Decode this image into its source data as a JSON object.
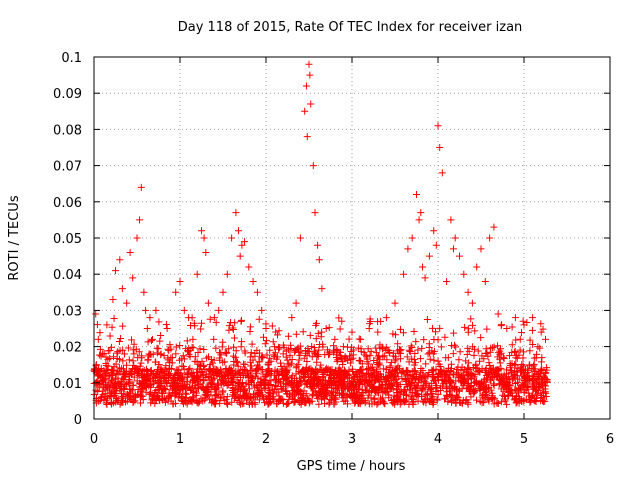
{
  "chart_data": {
    "type": "scatter",
    "title": "Day 118 of 2015, Rate Of TEC Index for receiver izan",
    "xlabel": "GPS time / hours",
    "ylabel": "ROTI / TECUs",
    "xlim": [
      0,
      6
    ],
    "ylim": [
      0,
      0.1
    ],
    "grid": true,
    "marker": "+",
    "series_color": "#ff0000",
    "x_ticks": [
      "0",
      "1",
      "2",
      "3",
      "4",
      "5",
      "6"
    ],
    "y_ticks": [
      "0",
      "0.01",
      "0.02",
      "0.03",
      "0.04",
      "0.05",
      "0.06",
      "0.07",
      "0.08",
      "0.09",
      "0.1"
    ],
    "series": [
      {
        "x": [
          0.02,
          0.05,
          0.1,
          0.15,
          0.22,
          0.25,
          0.3,
          0.33,
          0.38,
          0.42,
          0.45,
          0.5,
          0.53,
          0.55,
          0.58,
          0.6,
          0.62,
          0.65,
          0.68,
          0.72,
          0.78,
          0.85,
          0.95,
          1.0,
          1.05,
          1.1,
          1.15,
          1.2,
          1.25,
          1.28,
          1.3,
          1.33,
          1.4,
          1.45,
          1.5,
          1.55,
          1.6,
          1.65,
          1.68,
          1.7,
          1.72,
          1.75,
          1.8,
          1.85,
          1.9,
          1.95,
          2.0,
          2.1,
          2.2,
          2.3,
          2.35,
          2.4,
          2.45,
          2.47,
          2.48,
          2.5,
          2.51,
          2.52,
          2.55,
          2.57,
          2.6,
          2.62,
          2.65,
          2.7,
          2.8,
          2.9,
          3.0,
          3.1,
          3.2,
          3.3,
          3.4,
          3.5,
          3.6,
          3.65,
          3.7,
          3.75,
          3.78,
          3.8,
          3.82,
          3.85,
          3.9,
          3.95,
          3.98,
          4.0,
          4.02,
          4.05,
          4.1,
          4.15,
          4.18,
          4.2,
          4.25,
          4.3,
          4.35,
          4.4,
          4.45,
          4.5,
          4.55,
          4.6,
          4.65,
          4.7,
          4.8,
          4.9,
          5.0,
          5.1,
          5.2,
          5.25
        ],
        "y": [
          0.029,
          0.022,
          0.018,
          0.026,
          0.033,
          0.041,
          0.044,
          0.036,
          0.032,
          0.046,
          0.039,
          0.05,
          0.055,
          0.064,
          0.035,
          0.03,
          0.025,
          0.028,
          0.022,
          0.03,
          0.018,
          0.025,
          0.035,
          0.038,
          0.03,
          0.028,
          0.022,
          0.04,
          0.052,
          0.05,
          0.046,
          0.032,
          0.028,
          0.03,
          0.035,
          0.04,
          0.05,
          0.057,
          0.052,
          0.045,
          0.048,
          0.049,
          0.042,
          0.038,
          0.035,
          0.03,
          0.025,
          0.02,
          0.018,
          0.028,
          0.032,
          0.05,
          0.085,
          0.092,
          0.078,
          0.098,
          0.095,
          0.087,
          0.07,
          0.057,
          0.048,
          0.044,
          0.036,
          0.025,
          0.022,
          0.02,
          0.024,
          0.022,
          0.025,
          0.024,
          0.028,
          0.032,
          0.04,
          0.047,
          0.05,
          0.062,
          0.055,
          0.057,
          0.042,
          0.039,
          0.045,
          0.052,
          0.048,
          0.081,
          0.075,
          0.068,
          0.038,
          0.055,
          0.047,
          0.05,
          0.045,
          0.04,
          0.035,
          0.032,
          0.042,
          0.047,
          0.038,
          0.05,
          0.053,
          0.029,
          0.025,
          0.028,
          0.026,
          0.028,
          0.024,
          0.022
        ],
        "baseline_note": ""
      }
    ]
  }
}
